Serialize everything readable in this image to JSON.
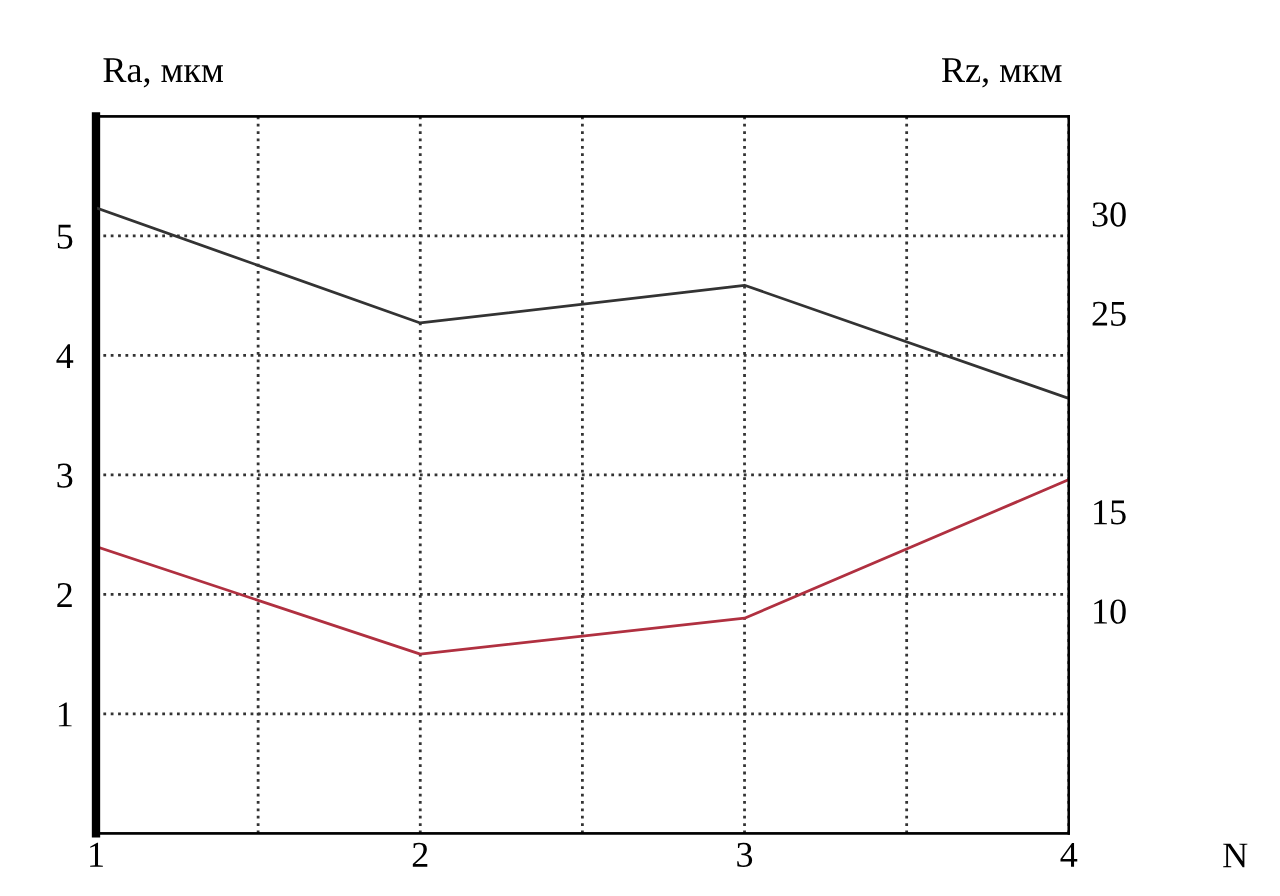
{
  "chart_data": {
    "type": "line",
    "ylabel": "Ra, мкм",
    "y2label": "Rz, мкм",
    "xlabel": "N",
    "x": [
      1,
      2,
      3,
      4
    ],
    "series": [
      {
        "color": "#b03040",
        "values": [
          2.4,
          1.5,
          1.8,
          2.96
        ]
      },
      {
        "color": "#333333",
        "values": [
          30.3,
          24.5,
          26.4,
          20.7
        ],
        "axis": "y2"
      }
    ],
    "xlim": [
      1,
      4
    ],
    "xticks": [
      1,
      {
        "value": 1.5,
        "label": null
      },
      2,
      {
        "value": 2.5,
        "label": null
      },
      3,
      {
        "value": 3.5,
        "label": null
      },
      4
    ],
    "ylim": [
      0,
      6
    ],
    "yticks": [
      1,
      2,
      3,
      4,
      5
    ],
    "y2lim": [
      -1.2,
      34.9
    ],
    "y2ticks": [
      10,
      15,
      25,
      30
    ],
    "grid": true,
    "line_style": "solid",
    "marker": "none"
  }
}
